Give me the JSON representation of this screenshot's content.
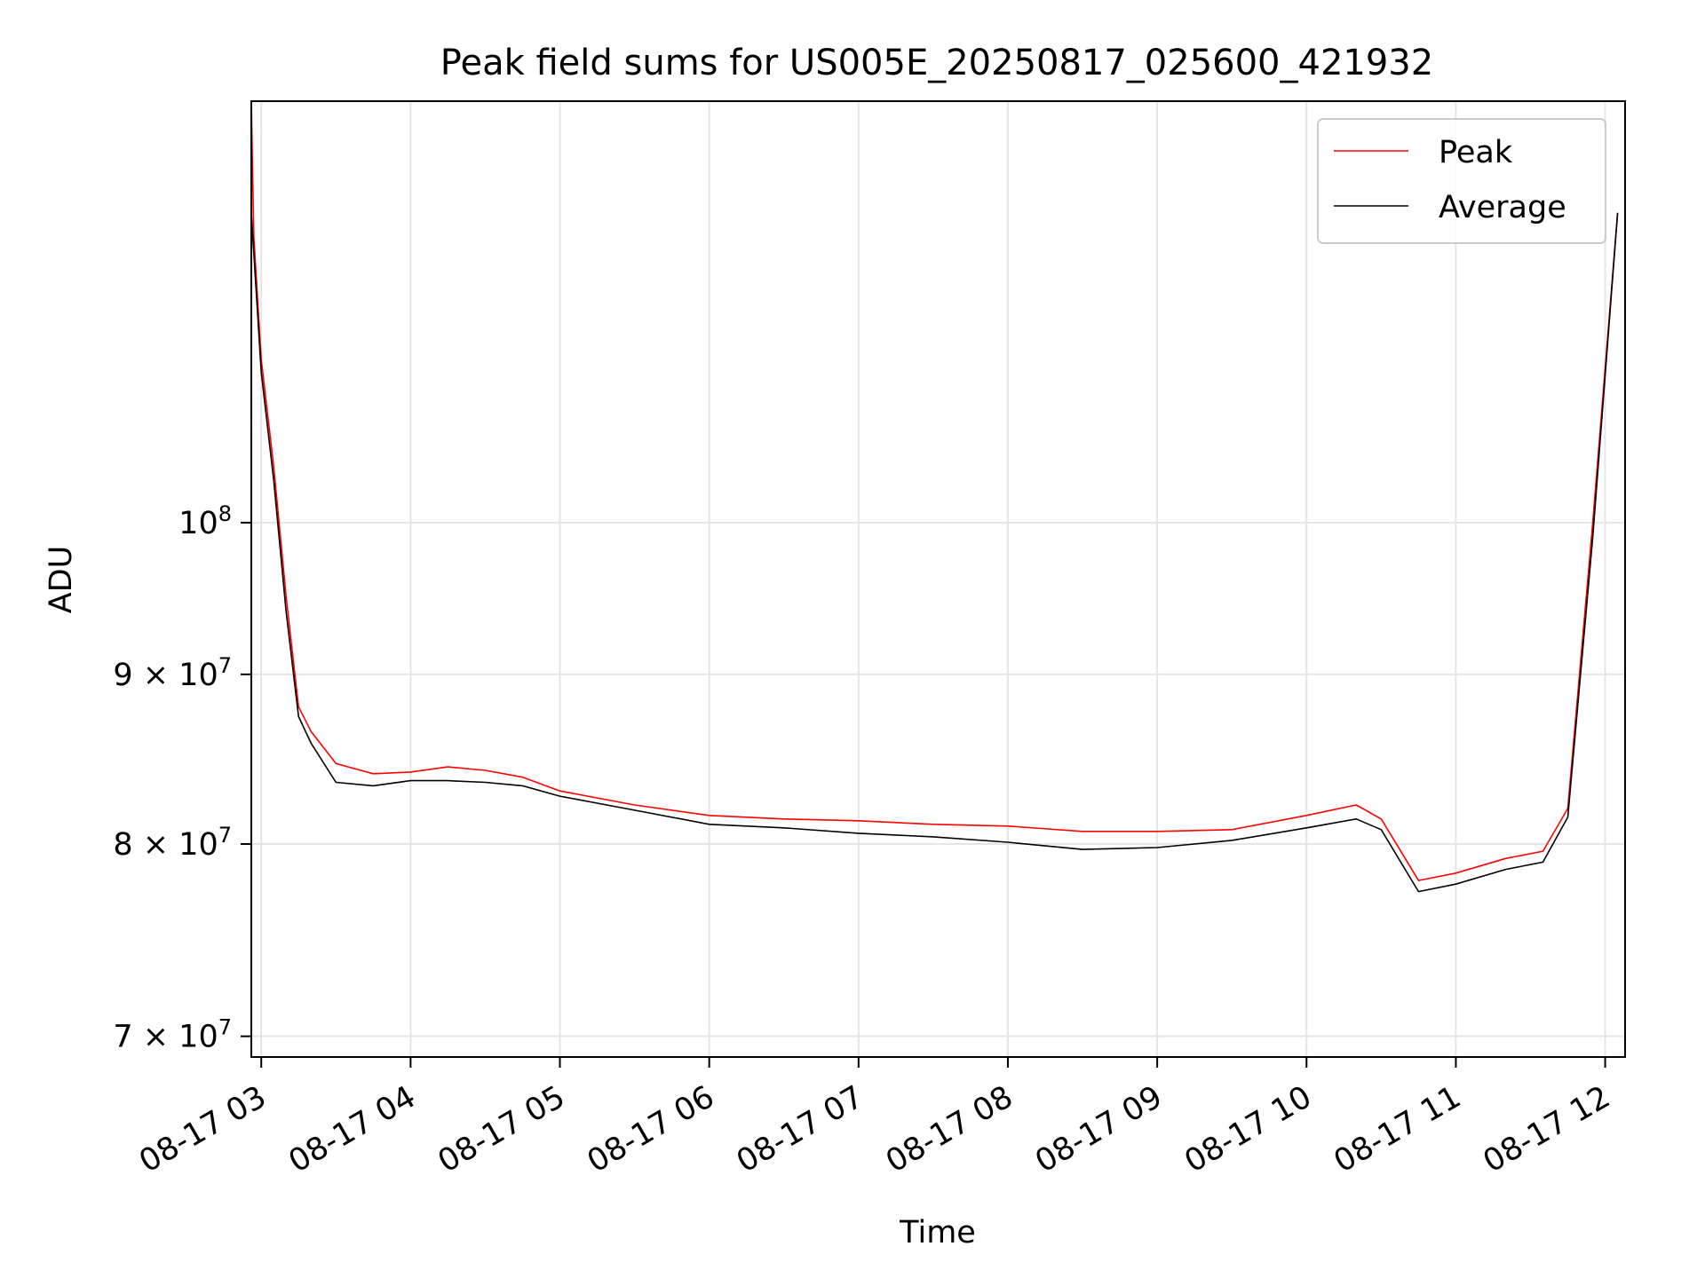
{
  "chart_data": {
    "type": "line",
    "title": "Peak field sums for US005E_20250817_025600_421932",
    "xlabel": "Time",
    "ylabel": "ADU",
    "x_range": [
      "2025-08-17T02:56",
      "2025-08-17T12:08"
    ],
    "y_scale": "log",
    "ylim": [
      69000000,
      134000000
    ],
    "grid": true,
    "legend_position": "top-right",
    "x_ticks": [
      {
        "value": "2025-08-17T03:00",
        "label": "08-17 03"
      },
      {
        "value": "2025-08-17T04:00",
        "label": "08-17 04"
      },
      {
        "value": "2025-08-17T05:00",
        "label": "08-17 05"
      },
      {
        "value": "2025-08-17T06:00",
        "label": "08-17 06"
      },
      {
        "value": "2025-08-17T07:00",
        "label": "08-17 07"
      },
      {
        "value": "2025-08-17T08:00",
        "label": "08-17 08"
      },
      {
        "value": "2025-08-17T09:00",
        "label": "08-17 09"
      },
      {
        "value": "2025-08-17T10:00",
        "label": "08-17 10"
      },
      {
        "value": "2025-08-17T11:00",
        "label": "08-17 11"
      },
      {
        "value": "2025-08-17T12:00",
        "label": "08-17 12"
      }
    ],
    "y_ticks": [
      {
        "value": 70000000,
        "mant": "7",
        "exp": "7"
      },
      {
        "value": 80000000,
        "mant": "8",
        "exp": "7"
      },
      {
        "value": 90000000,
        "mant": "9",
        "exp": "7"
      },
      {
        "value": 100000000,
        "mant": "",
        "exp": "8"
      }
    ],
    "series": [
      {
        "name": "Peak",
        "color": "#ff0000",
        "points": [
          [
            "2025-08-17T02:56",
            134000000
          ],
          [
            "2025-08-17T02:57",
            122000000
          ],
          [
            "2025-08-17T03:00",
            112000000
          ],
          [
            "2025-08-17T03:05",
            104000000
          ],
          [
            "2025-08-17T03:10",
            95000000
          ],
          [
            "2025-08-17T03:15",
            88000000
          ],
          [
            "2025-08-17T03:20",
            86500000
          ],
          [
            "2025-08-17T03:30",
            84600000
          ],
          [
            "2025-08-17T03:45",
            84000000
          ],
          [
            "2025-08-17T04:00",
            84100000
          ],
          [
            "2025-08-17T04:15",
            84400000
          ],
          [
            "2025-08-17T04:30",
            84200000
          ],
          [
            "2025-08-17T04:45",
            83800000
          ],
          [
            "2025-08-17T05:00",
            83000000
          ],
          [
            "2025-08-17T05:30",
            82200000
          ],
          [
            "2025-08-17T06:00",
            81600000
          ],
          [
            "2025-08-17T06:30",
            81400000
          ],
          [
            "2025-08-17T07:00",
            81300000
          ],
          [
            "2025-08-17T07:30",
            81100000
          ],
          [
            "2025-08-17T08:00",
            81000000
          ],
          [
            "2025-08-17T08:30",
            80700000
          ],
          [
            "2025-08-17T09:00",
            80700000
          ],
          [
            "2025-08-17T09:30",
            80800000
          ],
          [
            "2025-08-17T10:00",
            81600000
          ],
          [
            "2025-08-17T10:20",
            82200000
          ],
          [
            "2025-08-17T10:30",
            81400000
          ],
          [
            "2025-08-17T10:45",
            78000000
          ],
          [
            "2025-08-17T11:00",
            78400000
          ],
          [
            "2025-08-17T11:20",
            79200000
          ],
          [
            "2025-08-17T11:35",
            79600000
          ],
          [
            "2025-08-17T11:45",
            82000000
          ],
          [
            "2025-08-17T11:55",
            100000000
          ],
          [
            "2025-08-17T12:05",
            124000000
          ]
        ]
      },
      {
        "name": "Average",
        "color": "#000000",
        "points": [
          [
            "2025-08-17T02:56",
            124000000
          ],
          [
            "2025-08-17T03:00",
            111000000
          ],
          [
            "2025-08-17T03:05",
            103000000
          ],
          [
            "2025-08-17T03:10",
            94000000
          ],
          [
            "2025-08-17T03:15",
            87400000
          ],
          [
            "2025-08-17T03:20",
            85800000
          ],
          [
            "2025-08-17T03:30",
            83500000
          ],
          [
            "2025-08-17T03:45",
            83300000
          ],
          [
            "2025-08-17T04:00",
            83600000
          ],
          [
            "2025-08-17T04:15",
            83600000
          ],
          [
            "2025-08-17T04:30",
            83500000
          ],
          [
            "2025-08-17T04:45",
            83300000
          ],
          [
            "2025-08-17T05:00",
            82700000
          ],
          [
            "2025-08-17T05:30",
            81900000
          ],
          [
            "2025-08-17T06:00",
            81100000
          ],
          [
            "2025-08-17T06:30",
            80900000
          ],
          [
            "2025-08-17T07:00",
            80600000
          ],
          [
            "2025-08-17T07:30",
            80400000
          ],
          [
            "2025-08-17T08:00",
            80100000
          ],
          [
            "2025-08-17T08:30",
            79700000
          ],
          [
            "2025-08-17T09:00",
            79800000
          ],
          [
            "2025-08-17T09:30",
            80200000
          ],
          [
            "2025-08-17T10:00",
            80900000
          ],
          [
            "2025-08-17T10:20",
            81400000
          ],
          [
            "2025-08-17T10:30",
            80800000
          ],
          [
            "2025-08-17T10:45",
            77400000
          ],
          [
            "2025-08-17T11:00",
            77800000
          ],
          [
            "2025-08-17T11:20",
            78600000
          ],
          [
            "2025-08-17T11:35",
            79000000
          ],
          [
            "2025-08-17T11:45",
            81500000
          ],
          [
            "2025-08-17T11:55",
            99000000
          ],
          [
            "2025-08-17T12:05",
            124000000
          ]
        ]
      }
    ]
  }
}
